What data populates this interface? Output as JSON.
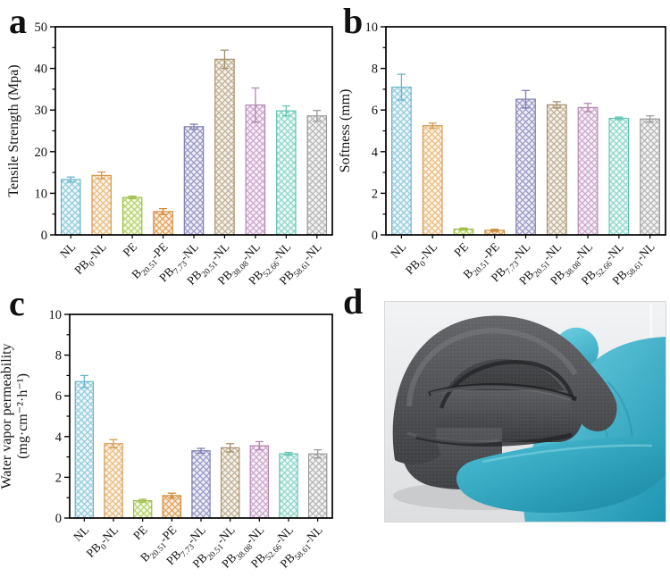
{
  "figure": {
    "background": "#ffffff"
  },
  "panels": {
    "a": {
      "label": "a"
    },
    "b": {
      "label": "b"
    },
    "c": {
      "label": "c"
    },
    "d": {
      "label": "d"
    }
  },
  "samples": {
    "categories": [
      "NL",
      "PB_{0}-NL",
      "PE",
      "B_{20.51}-PE",
      "PB_{7.73}-NL",
      "PB_{20.51}-NL",
      "PB_{38.08}-NL",
      "PB_{52.66}-NL",
      "PB_{58.61}-NL"
    ],
    "bar_colors": [
      {
        "hatch": "#93cbdc",
        "edge": "#6cb5cb"
      },
      {
        "hatch": "#e9bc80",
        "edge": "#d49b55"
      },
      {
        "hatch": "#b7d36a",
        "edge": "#9fbe4a"
      },
      {
        "hatch": "#e2a159",
        "edge": "#cf8a3b"
      },
      {
        "hatch": "#9a98c6",
        "edge": "#807eb2"
      },
      {
        "hatch": "#bfb092",
        "edge": "#a6906c"
      },
      {
        "hatch": "#cba6cb",
        "edge": "#b288b2"
      },
      {
        "hatch": "#8ed7ca",
        "edge": "#63c4b4"
      },
      {
        "hatch": "#b5b5b5",
        "edge": "#9a9a9a"
      }
    ]
  },
  "chart_data": [
    {
      "panel": "a",
      "type": "bar",
      "title": "",
      "xlabel": "",
      "ylabel": "Tensile Strength (Mpa)",
      "ylim": [
        0,
        50
      ],
      "ytick_step": 10,
      "yminor_step": 5,
      "grid": false,
      "categories": [
        "NL",
        "PB_{0}-NL",
        "PE",
        "B_{20.51}-PE",
        "PB_{7.73}-NL",
        "PB_{20.51}-NL",
        "PB_{38.08}-NL",
        "PB_{52.66}-NL",
        "PB_{58.61}-NL"
      ],
      "values": [
        13.3,
        14.3,
        9.0,
        5.6,
        26.0,
        42.2,
        31.2,
        29.8,
        28.6
      ],
      "errors": [
        0.6,
        0.8,
        0.3,
        0.7,
        0.6,
        2.2,
        4.1,
        1.2,
        1.3
      ]
    },
    {
      "panel": "b",
      "type": "bar",
      "title": "",
      "xlabel": "",
      "ylabel": "Softness (mm)",
      "ylim": [
        0,
        10
      ],
      "ytick_step": 2,
      "yminor_step": 1,
      "grid": false,
      "categories": [
        "NL",
        "PB_{0}-NL",
        "PE",
        "B_{20.51}-PE",
        "PB_{7.73}-NL",
        "PB_{20.51}-NL",
        "PB_{38.08}-NL",
        "PB_{52.66}-NL",
        "PB_{58.61}-NL"
      ],
      "values": [
        7.1,
        5.25,
        0.28,
        0.22,
        6.52,
        6.25,
        6.12,
        5.6,
        5.57
      ],
      "errors": [
        0.62,
        0.12,
        0.05,
        0.05,
        0.42,
        0.15,
        0.2,
        0.06,
        0.15
      ]
    },
    {
      "panel": "c",
      "type": "bar",
      "title": "",
      "xlabel": "",
      "ylabel": "Water vapor permeability (mg·cm⁻²·h⁻¹)",
      "ylabel_lines": [
        "Water vapor permeability",
        "(mg·cm⁻²·h⁻¹)"
      ],
      "ylim": [
        0,
        10
      ],
      "ytick_step": 2,
      "yminor_step": 1,
      "grid": false,
      "categories": [
        "NL",
        "PB_{0}-NL",
        "PE",
        "B_{20.51}-PE",
        "PB_{7.73}-NL",
        "PB_{20.51}-NL",
        "PB_{38.08}-NL",
        "PB_{52.66}-NL",
        "PB_{58.61}-NL"
      ],
      "values": [
        6.7,
        3.65,
        0.85,
        1.1,
        3.3,
        3.45,
        3.55,
        3.15,
        3.15
      ],
      "errors": [
        0.3,
        0.2,
        0.07,
        0.12,
        0.12,
        0.2,
        0.2,
        0.07,
        0.2
      ]
    }
  ],
  "photo": {
    "alt": "Folded dark-gray synthetic leather sample held by a hand in a teal nitrile glove",
    "background_color": "#e9ebec",
    "glove_color": "#3ab2c9",
    "material_color": "#4e4f52"
  }
}
